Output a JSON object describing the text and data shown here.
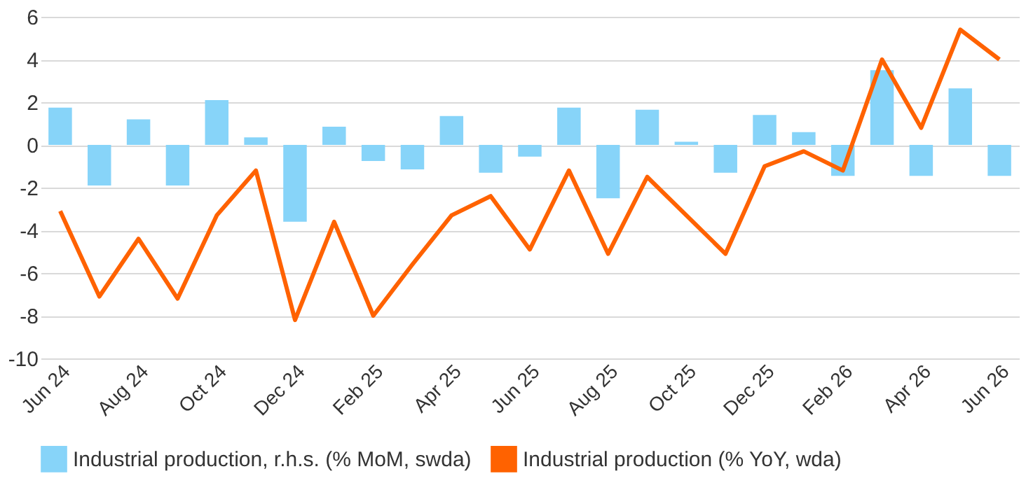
{
  "chart_data": {
    "type": "bar",
    "categories": [
      "Jun 24",
      null,
      "Aug 24",
      null,
      "Oct 24",
      null,
      "Dec 24",
      null,
      "Feb 25",
      null,
      "Apr 25",
      null,
      "Jun 25",
      null,
      "Aug 25",
      null,
      "Oct 25",
      null,
      "Dec 25",
      null,
      "Feb 26",
      null,
      "Apr 26",
      null,
      "Jun 26"
    ],
    "series": [
      {
        "name": "Industrial production, r.h.s. (% MoM, swda)",
        "color": "#87d4f9",
        "values": [
          1.75,
          -1.9,
          1.2,
          -1.9,
          2.1,
          0.35,
          -3.6,
          0.85,
          -0.75,
          -1.15,
          1.35,
          -1.3,
          -0.55,
          1.75,
          -2.5,
          1.65,
          0.15,
          -1.3,
          1.4,
          0.6,
          -1.45,
          3.5,
          -1.45,
          2.65,
          -1.45
        ]
      },
      {
        "name": "Industrial production (% YoY, wda)",
        "type": "line",
        "color": "#ff6200",
        "values": [
          -3.1,
          -7.1,
          -4.4,
          -7.2,
          -3.3,
          -1.2,
          -8.2,
          -3.6,
          -8.0,
          -5.6,
          -3.3,
          -2.4,
          -4.9,
          -1.2,
          -5.1,
          -1.5,
          -3.3,
          -5.1,
          -1.0,
          -0.3,
          -1.2,
          4.0,
          0.8,
          5.4,
          4.0
        ]
      }
    ],
    "ylim": [
      -10,
      6
    ],
    "yticks": [
      -10,
      -8,
      -6,
      -4,
      -2,
      0,
      2,
      4,
      6
    ],
    "grid": "y",
    "legend": "bottom",
    "line_style": "solid",
    "marker": "none"
  }
}
